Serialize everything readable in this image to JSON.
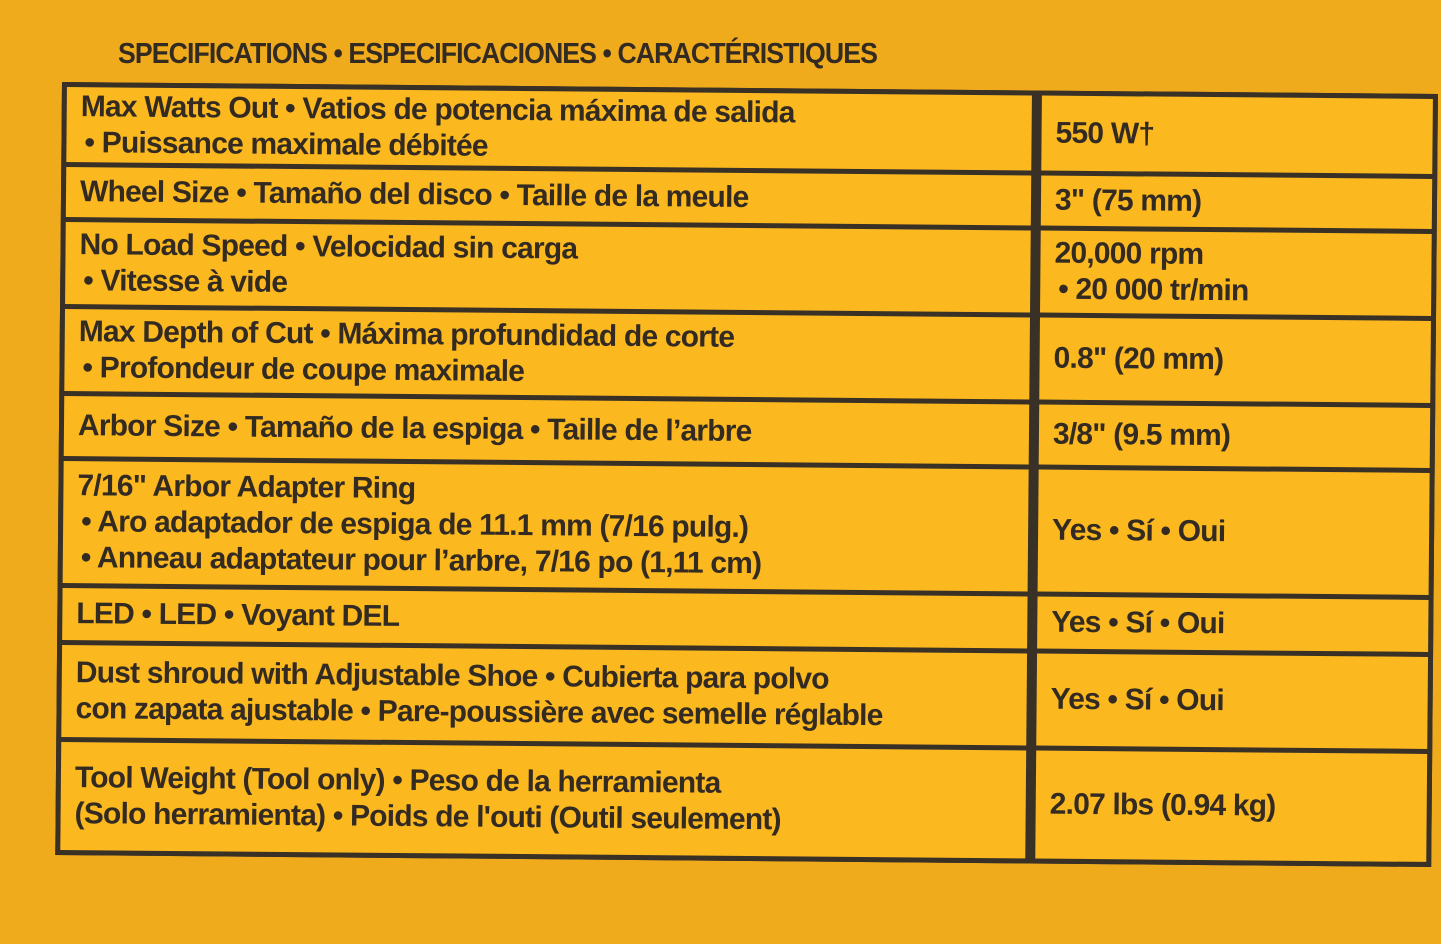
{
  "heading": "SPECIFICATIONS • ESPECIFICACIONES • CARACTÉRISTIQUES",
  "rows": [
    {
      "label": [
        "Max Watts Out • Vatios de potencia máxima de salida",
        "• Puissance maximale débitée"
      ],
      "value": [
        "550 W†"
      ]
    },
    {
      "label": [
        "Wheel Size • Tamaño del disco • Taille de la meule"
      ],
      "value": [
        "3\" (75 mm)"
      ]
    },
    {
      "label": [
        "No Load Speed • Velocidad sin carga",
        "• Vitesse à vide"
      ],
      "value": [
        "20,000 rpm",
        "• 20 000 tr/min"
      ]
    },
    {
      "label": [
        "Max Depth of Cut • Máxima profundidad de corte",
        "• Profondeur de coupe maximale"
      ],
      "value": [
        "0.8\" (20 mm)"
      ]
    },
    {
      "label": [
        "Arbor Size • Tamaño de la espiga • Taille de l’arbre"
      ],
      "value": [
        "3/8\" (9.5 mm)"
      ]
    },
    {
      "label": [
        "7/16\" Arbor Adapter Ring",
        "• Aro adaptador de espiga de 11.1 mm (7/16 pulg.)",
        "• Anneau adaptateur pour l’arbre, 7/16 po (1,11 cm)"
      ],
      "value": [
        "Yes • Sí • Oui"
      ]
    },
    {
      "label": [
        "LED • LED • Voyant DEL"
      ],
      "value": [
        "Yes • Sí • Oui"
      ]
    },
    {
      "label": [
        "Dust shroud with Adjustable Shoe • Cubierta para polvo",
        "con zapata ajustable • Pare-poussière avec semelle réglable"
      ],
      "value": [
        "Yes • Sí • Oui"
      ]
    },
    {
      "label": [
        "Tool Weight (Tool only) • Peso de la herramienta",
        "(Solo herramienta) • Poids de l'outi (Outil seulement)"
      ],
      "value": [
        "2.07 lbs (0.94 kg)"
      ]
    }
  ]
}
